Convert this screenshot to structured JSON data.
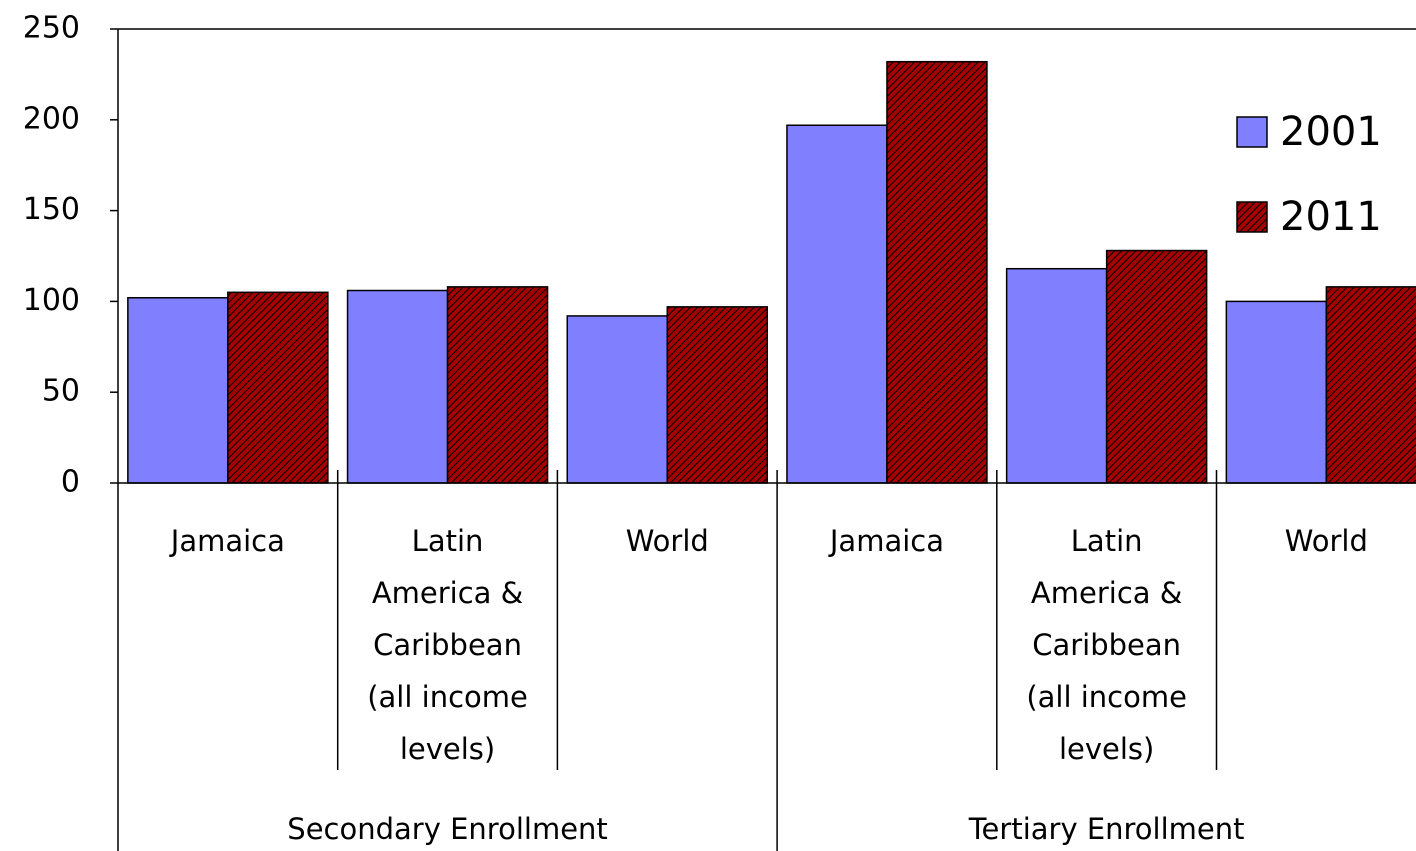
{
  "chart_data": {
    "type": "bar",
    "groups": [
      "Secondary Enrollment",
      "Tertiary Enrollment"
    ],
    "categories": [
      "Jamaica",
      "Latin America & Caribbean (all income levels)",
      "World",
      "Jamaica",
      "Latin America & Caribbean (all income levels)",
      "World"
    ],
    "series": [
      {
        "name": "2001",
        "color": "#8080ff",
        "values": [
          102,
          106,
          92,
          197,
          118,
          100
        ]
      },
      {
        "name": "2011",
        "color": "#a50000",
        "pattern": "diagonal",
        "values": [
          105,
          108,
          97,
          232,
          128,
          108
        ]
      }
    ],
    "ylim": [
      0,
      250
    ],
    "yticks": [
      0,
      50,
      100,
      150,
      200,
      250
    ],
    "legend": "top-right"
  }
}
